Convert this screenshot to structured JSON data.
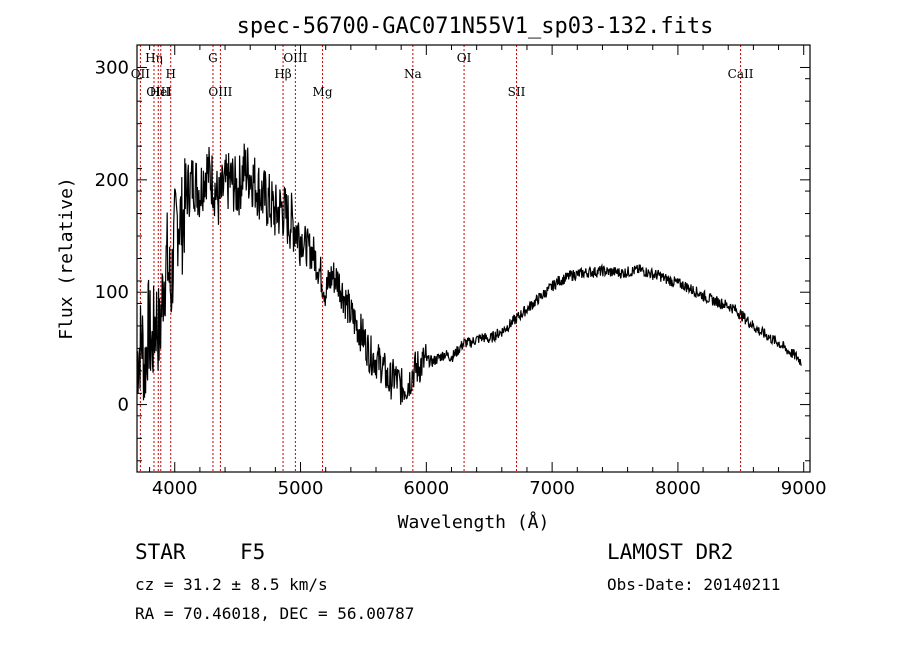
{
  "chart_data": {
    "type": "line",
    "title": "spec-56700-GAC071N55V1_sp03-132.fits",
    "xlabel": "Wavelength (Å)",
    "ylabel": "Flux (relative)",
    "xlim": [
      3700,
      9050
    ],
    "ylim": [
      -60,
      320
    ],
    "x_ticks": [
      4000,
      5000,
      6000,
      7000,
      8000,
      9000
    ],
    "y_ticks": [
      0,
      100,
      200,
      300
    ],
    "series": [
      {
        "x": [
          3700,
          3740,
          3760,
          3790,
          3820,
          3850,
          3880,
          3910,
          3940,
          3970,
          4000,
          4030,
          4060,
          4100,
          4150,
          4200,
          4250,
          4300,
          4350,
          4400,
          4450,
          4500,
          4550,
          4600,
          4650,
          4700,
          4750,
          4800,
          4850,
          4900,
          4950,
          5000,
          5050,
          5100,
          5150,
          5200,
          5250,
          5300,
          5350,
          5400,
          5450,
          5500,
          5550,
          5600,
          5650,
          5700,
          5750,
          5800,
          5850,
          5900,
          5950,
          6000,
          6050,
          6100,
          6150,
          6200,
          6250,
          6300,
          6350,
          6400,
          6450,
          6500,
          6550,
          6600,
          6650,
          6700,
          6750,
          6800,
          6850,
          6900,
          6950,
          7000,
          7050,
          7100,
          7150,
          7200,
          7250,
          7300,
          7350,
          7400,
          7450,
          7500,
          7550,
          7600,
          7650,
          7700,
          7750,
          7800,
          7850,
          7900,
          7950,
          8000,
          8050,
          8100,
          8150,
          8200,
          8250,
          8300,
          8350,
          8400,
          8450,
          8500,
          8550,
          8600,
          8650,
          8700,
          8750,
          8800,
          8850,
          8900,
          8950,
          8980
        ],
        "y": [
          40,
          60,
          30,
          70,
          50,
          80,
          60,
          110,
          130,
          100,
          150,
          170,
          160,
          190,
          200,
          190,
          210,
          200,
          180,
          195,
          200,
          190,
          210,
          205,
          195,
          185,
          180,
          170,
          175,
          165,
          160,
          150,
          140,
          135,
          120,
          100,
          115,
          110,
          95,
          80,
          70,
          60,
          45,
          40,
          35,
          20,
          25,
          15,
          18,
          30,
          35,
          40,
          38,
          42,
          45,
          42,
          48,
          55,
          55,
          58,
          60,
          58,
          62,
          65,
          70,
          75,
          80,
          85,
          90,
          95,
          100,
          105,
          110,
          112,
          115,
          116,
          117,
          118,
          118,
          119,
          118,
          118,
          117,
          118,
          119,
          120,
          118,
          116,
          115,
          112,
          110,
          108,
          106,
          103,
          100,
          97,
          94,
          92,
          90,
          88,
          85,
          80,
          75,
          70,
          65,
          62,
          58,
          55,
          50,
          46,
          42,
          38
        ]
      }
    ],
    "spectral_lines": [
      {
        "name": "OII",
        "wavelength": 3727,
        "row": 2
      },
      {
        "name": "Hη",
        "wavelength": 3835,
        "row": 1
      },
      {
        "name": "OIII",
        "wavelength": 3869,
        "row": 3
      },
      {
        "name": "HeI",
        "wavelength": 3889,
        "row": 3
      },
      {
        "name": "H",
        "wavelength": 3968,
        "row": 2
      },
      {
        "name": "G",
        "wavelength": 4304,
        "row": 1
      },
      {
        "name": "OIII",
        "wavelength": 4363,
        "row": 3
      },
      {
        "name": "Hβ",
        "wavelength": 4861,
        "row": 2
      },
      {
        "name": "OIII",
        "wavelength": 4959,
        "row": 1
      },
      {
        "name": "Mg",
        "wavelength": 5175,
        "row": 3
      },
      {
        "name": "Na",
        "wavelength": 5893,
        "row": 2
      },
      {
        "name": "OI",
        "wavelength": 6300,
        "row": 1
      },
      {
        "name": "SII",
        "wavelength": 6717,
        "row": 3
      },
      {
        "name": "CaII",
        "wavelength": 8498,
        "row": 2
      }
    ],
    "grid": false,
    "line_color": "#000000",
    "marker_color": "#cc0000"
  },
  "info": {
    "object_class": "STAR",
    "subclass": "F5",
    "survey": "LAMOST DR2",
    "redshift": "cz = 31.2 ± 8.5 km/s",
    "obs_date": "Obs-Date: 20140211",
    "coords": "RA =  70.46018, DEC =  56.00787"
  }
}
